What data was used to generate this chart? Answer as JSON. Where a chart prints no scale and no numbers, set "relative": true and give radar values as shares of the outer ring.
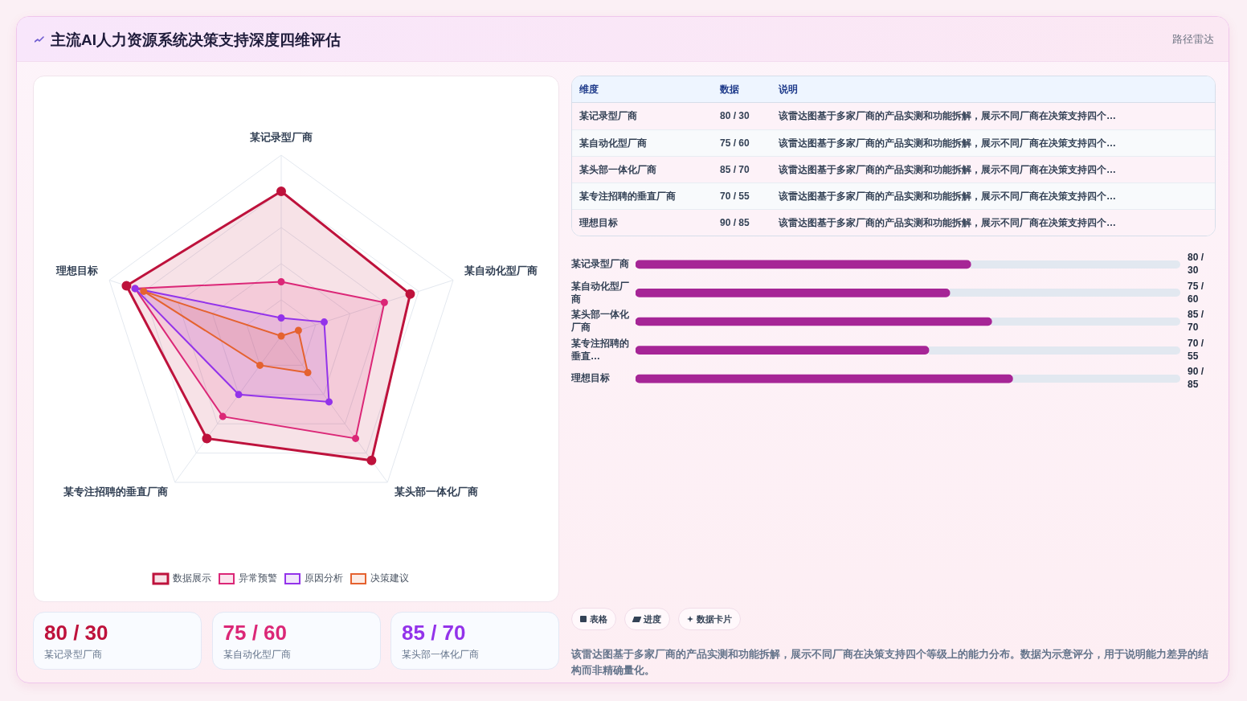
{
  "chart_data": [
    {
      "type": "radar",
      "title": "主流AI人力资源系统决策支持深度四维评估",
      "categories": [
        "某记录型厂商",
        "某自动化型厂商",
        "某头部一体化厂商",
        "某专注招聘的垂直厂商",
        "理想目标"
      ],
      "relative": true,
      "grid": true,
      "legend": "bottom",
      "marker": "circle",
      "series": [
        {
          "name": "数据展示",
          "color": "#be123c",
          "values": [
            0.8,
            0.75,
            0.85,
            0.7,
            0.9
          ]
        },
        {
          "name": "异常预警",
          "color": "#db2777",
          "values": [
            0.3,
            0.6,
            0.7,
            0.55,
            0.85
          ]
        },
        {
          "name": "原因分析",
          "color": "#9333ea",
          "values": [
            0.1,
            0.25,
            0.45,
            0.4,
            0.85
          ]
        },
        {
          "name": "决策建议",
          "color": "#e5622f",
          "values": [
            0,
            0.1,
            0.25,
            0.2,
            0.8
          ]
        }
      ]
    },
    {
      "type": "other",
      "subtitle": "路径雷达",
      "categories": [
        "某记录型厂商",
        "某自动化型厂商",
        "某头部一体化厂商",
        "某专注招聘的垂直厂商",
        "理想目标"
      ],
      "value_labels": [
        "80 / 30",
        "75 / 60",
        "85 / 70",
        "70 / 55",
        "90 / 85"
      ],
      "annotations": [
        "维度",
        "数据",
        "说明",
        "该雷达图基于多家厂商的产品实测和功能拆解，展示不同厂商在决策支持四个…",
        "该雷达图基于多家厂商的产品实测和功能拆解，展示不同厂商在决策支持四个…",
        "该雷达图基于多家厂商的产品实测和功能拆解，展示不同厂商在决策支持四个…",
        "该雷达图基于多家厂商的产品实测和功能拆解，展示不同厂商在决策支持四个…",
        "该雷达图基于多家厂商的产品实测和功能拆解，展示不同厂商在决策支持四个…"
      ]
    },
    {
      "type": "bar",
      "orientation": "horizontal",
      "categories": [
        "某记录型厂商",
        "某自动化型厂商",
        "某头部一体化厂商",
        "某专注招聘的垂直…",
        "理想目标"
      ],
      "values": [
        80,
        75,
        85,
        70,
        90
      ],
      "xlim": [
        0,
        130
      ],
      "tick_labels": "y",
      "color": "#a62596",
      "value_labels": [
        "80 / 30",
        "75 / 60",
        "85 / 70",
        "70 / 55",
        "90 / 85"
      ]
    },
    {
      "type": "other",
      "categories": [
        "某记录型厂商",
        "某自动化型厂商",
        "某头部一体化厂商"
      ],
      "value_labels": [
        "80 / 30",
        "75 / 60",
        "85 / 70"
      ]
    },
    {
      "type": "other",
      "annotations": [
        "表格",
        "进度",
        "数据卡片",
        "该雷达图基于多家厂商的产品实测和功能拆解，展示不同厂商在决策支持四个等级上的能力分布。数据为示意评分，用于说明能力差异的结构而非精确量化。"
      ]
    }
  ]
}
